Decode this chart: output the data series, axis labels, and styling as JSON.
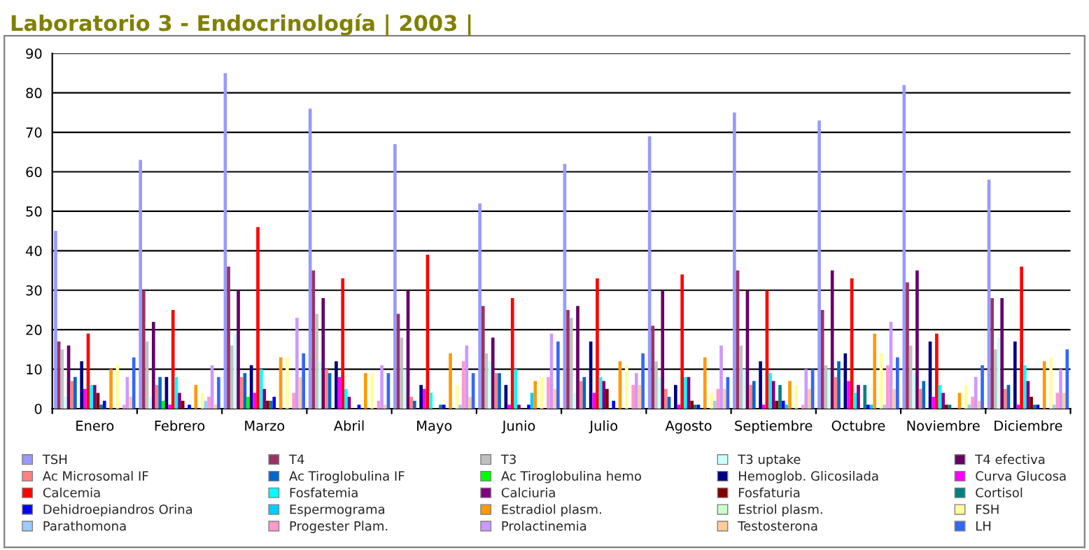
{
  "chart_data": {
    "type": "bar",
    "title": "Laboratorio 3 - Endocrinología | 2003 |",
    "categories": [
      "Enero",
      "Febrero",
      "Marzo",
      "Abril",
      "Mayo",
      "Junio",
      "Julio",
      "Agosto",
      "Septiembre",
      "Octubre",
      "Noviembre",
      "Diciembre"
    ],
    "ylim": [
      0,
      90
    ],
    "yticks": [
      0,
      10,
      20,
      30,
      40,
      50,
      60,
      70,
      80,
      90
    ],
    "grid": "y",
    "legend": "bottom",
    "series": [
      {
        "name": "TSH",
        "color": "#9999ff",
        "values": [
          45,
          63,
          85,
          76,
          67,
          52,
          62,
          69,
          75,
          73,
          82,
          58
        ]
      },
      {
        "name": "T4",
        "color": "#993366",
        "values": [
          17,
          30,
          36,
          35,
          24,
          26,
          25,
          21,
          35,
          25,
          32,
          28
        ]
      },
      {
        "name": "T3",
        "color": "#c0c0c0",
        "values": [
          15,
          17,
          16,
          24,
          18,
          14,
          23,
          12,
          16,
          11,
          16,
          15
        ]
      },
      {
        "name": "T3 uptake",
        "color": "#ccffff",
        "values": [
          3,
          3,
          19,
          12,
          10,
          12,
          4,
          8,
          10,
          10,
          9,
          18
        ]
      },
      {
        "name": "T4 efectiva",
        "color": "#660066",
        "values": [
          16,
          22,
          30,
          28,
          30,
          18,
          26,
          30,
          30,
          35,
          35,
          28
        ]
      },
      {
        "name": "Ac Microsomal IF",
        "color": "#ff8080",
        "values": [
          7,
          6,
          8,
          10,
          3,
          9,
          7,
          5,
          6,
          8,
          5,
          5
        ]
      },
      {
        "name": "Ac Tiroglobulina IF",
        "color": "#0066cc",
        "values": [
          8,
          8,
          9,
          9,
          2,
          9,
          8,
          3,
          7,
          12,
          7,
          6
        ]
      },
      {
        "name": "Ac Tiroglobulina hemo",
        "color": "#00ff00",
        "values": [
          0,
          2,
          3,
          0,
          0,
          0,
          0,
          0,
          0,
          0,
          0,
          0
        ]
      },
      {
        "name": "Hemoglob. Glicosilada",
        "color": "#000080",
        "values": [
          12,
          8,
          11,
          12,
          6,
          6,
          17,
          6,
          12,
          14,
          17,
          17
        ]
      },
      {
        "name": "Curva Glucosa",
        "color": "#ff00ff",
        "values": [
          5,
          1,
          4,
          8,
          5,
          1,
          4,
          1,
          1,
          7,
          3,
          1
        ]
      },
      {
        "name": "Calcemia",
        "color": "#ff0000",
        "values": [
          19,
          25,
          46,
          33,
          39,
          28,
          33,
          34,
          30,
          33,
          19,
          36
        ]
      },
      {
        "name": "Fosfatemia",
        "color": "#00ffff",
        "values": [
          6,
          8,
          10,
          5,
          4,
          10,
          8,
          8,
          9,
          4,
          6,
          11
        ]
      },
      {
        "name": "Calciuria",
        "color": "#800080",
        "values": [
          6,
          4,
          5,
          3,
          0,
          1,
          7,
          8,
          7,
          6,
          4,
          7
        ]
      },
      {
        "name": "Fosfaturia",
        "color": "#800000",
        "values": [
          4,
          2,
          2,
          0,
          0,
          0,
          5,
          2,
          2,
          0,
          1,
          3
        ]
      },
      {
        "name": "Cortisol",
        "color": "#008080",
        "values": [
          1,
          0,
          2,
          0,
          1,
          0,
          0,
          1,
          6,
          6,
          1,
          1
        ]
      },
      {
        "name": "Dehidroepiandros Orina",
        "color": "#0000ff",
        "values": [
          2,
          1,
          3,
          1,
          1,
          1,
          2,
          1,
          2,
          1,
          0,
          1
        ]
      },
      {
        "name": "Espermograma",
        "color": "#00ccff",
        "values": [
          0,
          0,
          0,
          0,
          0,
          4,
          0,
          0,
          1,
          1,
          0,
          0
        ]
      },
      {
        "name": "Estradiol plasm.",
        "color": "#ff9900",
        "values": [
          10,
          6,
          13,
          9,
          14,
          7,
          12,
          13,
          7,
          19,
          4,
          12
        ]
      },
      {
        "name": "Estriol plasm.",
        "color": "#ccffcc",
        "values": [
          0,
          0,
          0,
          0,
          0,
          0,
          0,
          0,
          0,
          0,
          0,
          0
        ]
      },
      {
        "name": "FSH",
        "color": "#ffff99",
        "values": [
          11,
          4,
          13,
          9,
          6,
          8,
          11,
          4,
          6,
          14,
          6,
          13
        ]
      },
      {
        "name": "Parathomona",
        "color": "#99ccff",
        "values": [
          0,
          2,
          0,
          0,
          1,
          0,
          0,
          2,
          0,
          1,
          1,
          1
        ]
      },
      {
        "name": "Progester Plam.",
        "color": "#ff99cc",
        "values": [
          1,
          3,
          4,
          2,
          12,
          8,
          6,
          5,
          1,
          11,
          3,
          4
        ]
      },
      {
        "name": "Prolactinemia",
        "color": "#cc99ff",
        "values": [
          8,
          11,
          23,
          11,
          16,
          19,
          9,
          16,
          10,
          22,
          8,
          10
        ]
      },
      {
        "name": "Testosterona",
        "color": "#ffcc99",
        "values": [
          3,
          1,
          8,
          1,
          3,
          5,
          6,
          5,
          5,
          5,
          2,
          4
        ]
      },
      {
        "name": "LH",
        "color": "#3366ff",
        "values": [
          13,
          8,
          14,
          9,
          9,
          17,
          14,
          8,
          10,
          13,
          11,
          15
        ]
      }
    ]
  }
}
